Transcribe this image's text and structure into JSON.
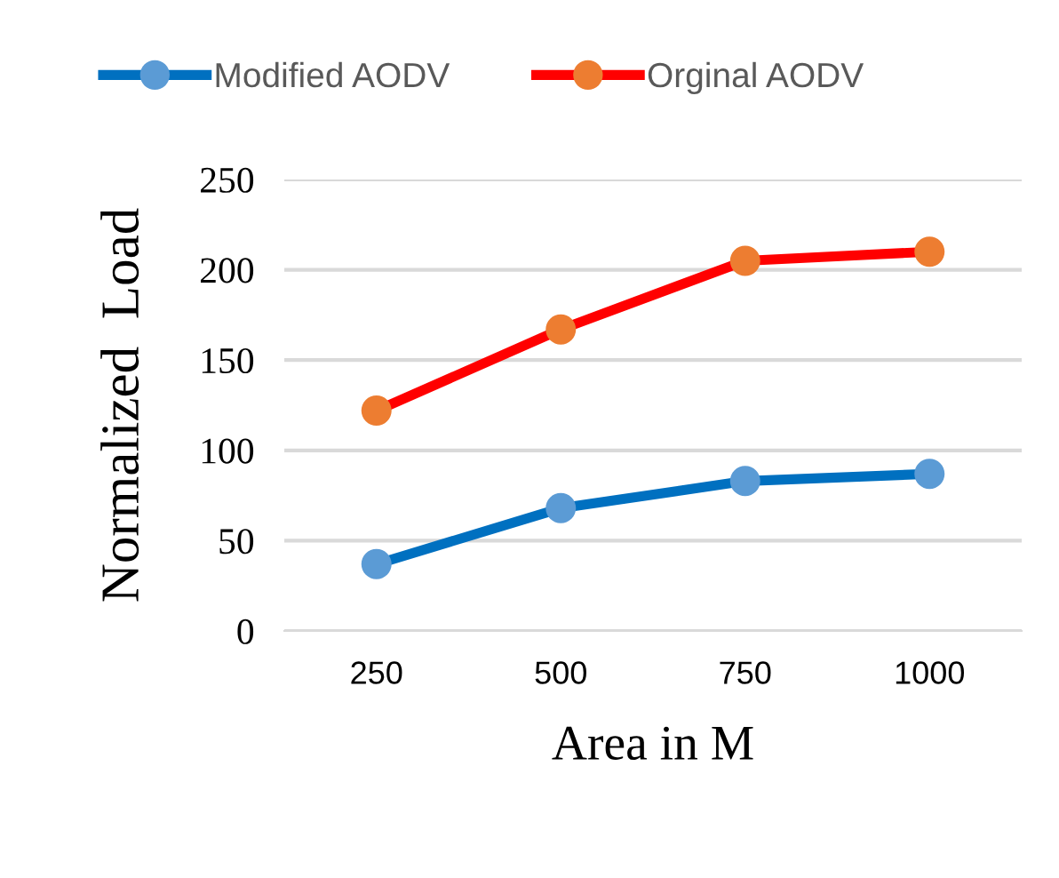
{
  "chart_data": {
    "type": "line",
    "xlabel": "Area in M",
    "ylabel": "Normalized  Load",
    "categories": [
      "250",
      "500",
      "750",
      "1000"
    ],
    "series": [
      {
        "name": "Modified AODV",
        "color": "#0070c0",
        "colors": [
          "#5b9bd5",
          "#5b9bd5",
          "#5b9bd5",
          "#5b9bd5"
        ],
        "values": [
          37,
          68,
          83,
          87
        ]
      },
      {
        "name": "Orginal AODV",
        "color": "#ff0000",
        "colors": [
          "#ed7d31",
          "#ed7d31",
          "#ed7d31",
          "#ed7d31"
        ],
        "values": [
          122,
          167,
          205,
          210
        ]
      }
    ],
    "ylim": [
      0,
      250
    ],
    "yticks": [
      0,
      50,
      100,
      150,
      200,
      250
    ],
    "grid": "y",
    "legend": "top",
    "marker": "circle",
    "line_style": "solid"
  }
}
